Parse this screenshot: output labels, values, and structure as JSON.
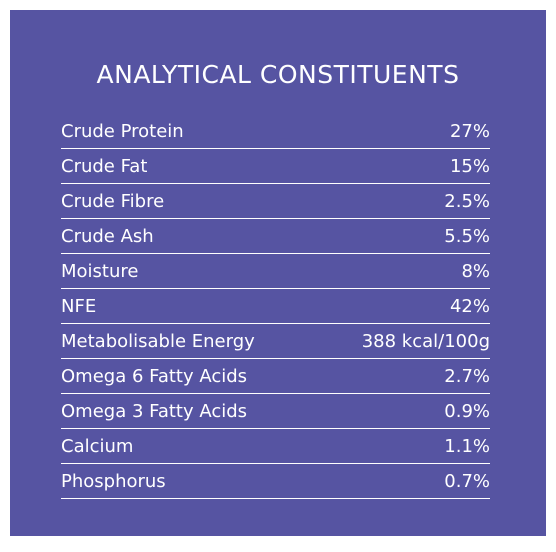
{
  "title": "ANALYTICAL CONSTITUENTS",
  "colors": {
    "panel_background": "#5654a2",
    "text": "#ffffff",
    "page_background": "#ffffff"
  },
  "rows": [
    {
      "label": "Crude Protein",
      "value": "27%"
    },
    {
      "label": "Crude Fat",
      "value": "15%"
    },
    {
      "label": "Crude Fibre",
      "value": "2.5%"
    },
    {
      "label": "Crude Ash",
      "value": "5.5%"
    },
    {
      "label": "Moisture",
      "value": "8%"
    },
    {
      "label": "NFE",
      "value": "42%"
    },
    {
      "label": "Metabolisable Energy",
      "value": "388 kcal/100g"
    },
    {
      "label": "Omega 6 Fatty Acids",
      "value": "2.7%"
    },
    {
      "label": "Omega 3 Fatty Acids",
      "value": "0.9%"
    },
    {
      "label": "Calcium",
      "value": "1.1%"
    },
    {
      "label": "Phosphorus",
      "value": "0.7%"
    }
  ]
}
